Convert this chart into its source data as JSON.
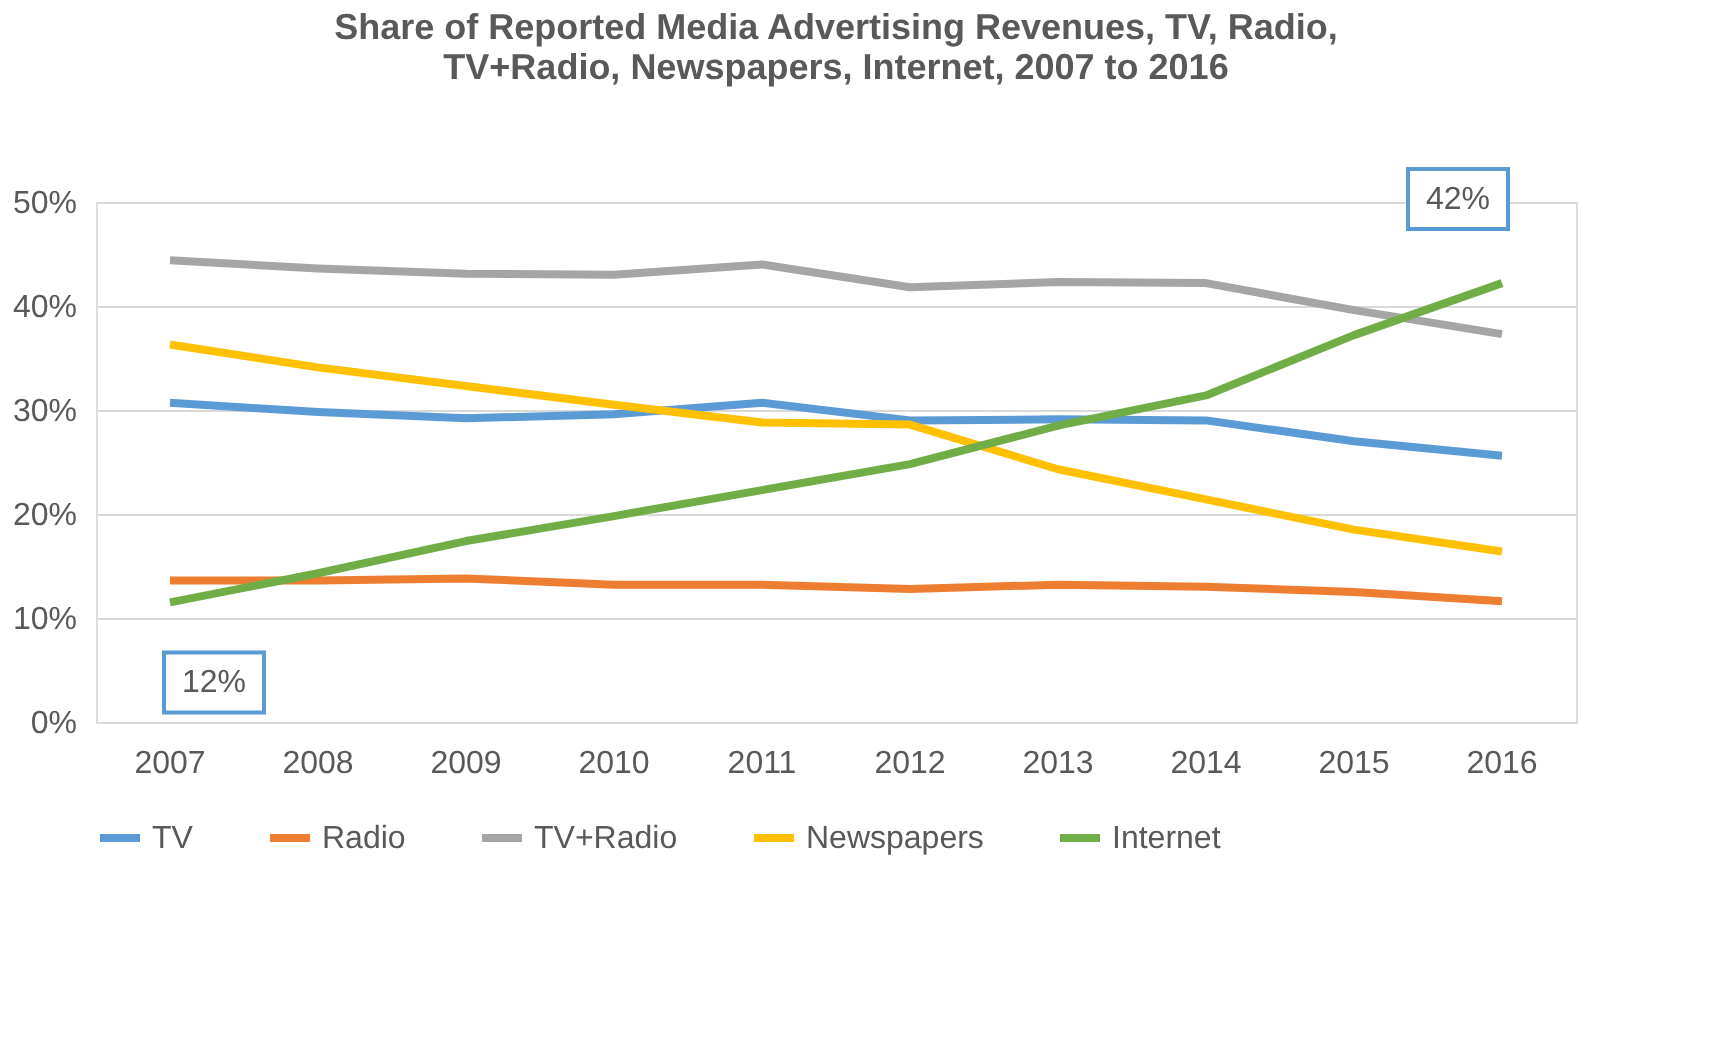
{
  "chart_data": {
    "type": "line",
    "title": "Share of Reported Media Advertising Revenues, TV, Radio, TV+Radio,  Newspapers, Internet, 2007 to 2016",
    "categories": [
      "2007",
      "2008",
      "2009",
      "2010",
      "2011",
      "2012",
      "2013",
      "2014",
      "2015",
      "2016"
    ],
    "series": [
      {
        "name": "TV",
        "color": "#5b9bd5",
        "values": [
          30.7,
          29.8,
          29.2,
          29.6,
          30.7,
          29.0,
          29.1,
          29.0,
          27.0,
          25.6
        ]
      },
      {
        "name": "Radio",
        "color": "#ed7d31",
        "values": [
          13.6,
          13.6,
          13.8,
          13.2,
          13.2,
          12.8,
          13.2,
          13.0,
          12.5,
          11.6
        ]
      },
      {
        "name": "TV+Radio",
        "color": "#a5a5a5",
        "values": [
          44.4,
          43.6,
          43.1,
          43.0,
          44.0,
          41.8,
          42.3,
          42.2,
          39.6,
          37.3
        ]
      },
      {
        "name": "Newspapers",
        "color": "#ffc000",
        "values": [
          36.3,
          34.1,
          32.3,
          30.5,
          28.8,
          28.6,
          24.3,
          21.4,
          18.5,
          16.4
        ]
      },
      {
        "name": "Internet",
        "color": "#70ad47",
        "values": [
          11.5,
          14.3,
          17.4,
          19.8,
          22.3,
          24.8,
          28.5,
          31.4,
          37.2,
          42.2
        ]
      }
    ],
    "ylim": [
      0,
      50
    ],
    "yticks": [
      {
        "value": 0,
        "label": "0%"
      },
      {
        "value": 10,
        "label": "10%"
      },
      {
        "value": 20,
        "label": "20%"
      },
      {
        "value": 30,
        "label": "30%"
      },
      {
        "value": 40,
        "label": "40%"
      },
      {
        "value": 50,
        "label": "50%"
      }
    ],
    "grid": "y",
    "legend": "bottom",
    "marker": "none",
    "line_style": "solid",
    "annotations": [
      {
        "text": "12%",
        "x": "2007",
        "y": 11.5
      },
      {
        "text": "42%",
        "x": "2016",
        "y": 42.2
      }
    ]
  }
}
